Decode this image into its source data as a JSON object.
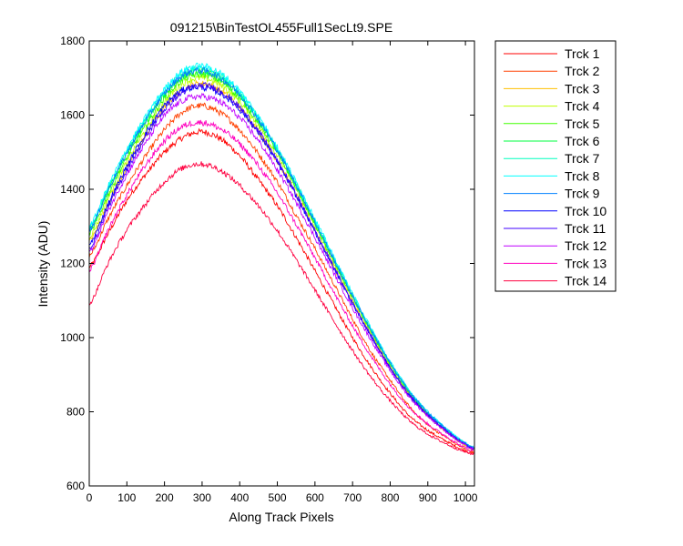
{
  "chart_data": {
    "type": "line",
    "title": "091215\\BinTestOL455Full1SecLt9.SPE",
    "xlabel": "Along Track Pixels",
    "ylabel": "Intensity (ADU)",
    "xlim": [
      0,
      1024
    ],
    "ylim": [
      600,
      1800
    ],
    "xticks": [
      0,
      100,
      200,
      300,
      400,
      500,
      600,
      700,
      800,
      900,
      1000
    ],
    "yticks": [
      600,
      800,
      1000,
      1200,
      1400,
      1600,
      1800
    ],
    "grid": false,
    "legend_position": "outside-right",
    "x": [
      0,
      50,
      100,
      150,
      200,
      250,
      300,
      350,
      400,
      450,
      500,
      550,
      600,
      650,
      700,
      750,
      800,
      850,
      900,
      950,
      1000,
      1023
    ],
    "series": [
      {
        "name": "Trck 1",
        "color": "#ff0000",
        "values": [
          1190,
          1280,
          1370,
          1440,
          1500,
          1540,
          1555,
          1535,
          1490,
          1425,
          1355,
          1270,
          1180,
          1090,
          1000,
          920,
          850,
          790,
          750,
          720,
          695,
          688
        ]
      },
      {
        "name": "Trck 2",
        "color": "#ff4000",
        "values": [
          1220,
          1320,
          1410,
          1490,
          1560,
          1610,
          1625,
          1605,
          1560,
          1495,
          1420,
          1330,
          1240,
          1145,
          1050,
          960,
          885,
          815,
          765,
          730,
          700,
          692
        ]
      },
      {
        "name": "Trck 3",
        "color": "#ffbf00",
        "values": [
          1260,
          1360,
          1460,
          1545,
          1620,
          1670,
          1685,
          1665,
          1620,
          1555,
          1475,
          1385,
          1290,
          1190,
          1095,
          1005,
          920,
          845,
          790,
          745,
          710,
          698
        ]
      },
      {
        "name": "Trck 4",
        "color": "#bfff00",
        "values": [
          1270,
          1375,
          1475,
          1560,
          1635,
          1685,
          1700,
          1680,
          1635,
          1570,
          1490,
          1400,
          1300,
          1200,
          1105,
          1012,
          925,
          850,
          793,
          748,
          712,
          700
        ]
      },
      {
        "name": "Trck 5",
        "color": "#40ff00",
        "values": [
          1280,
          1385,
          1485,
          1570,
          1645,
          1695,
          1710,
          1690,
          1645,
          1578,
          1498,
          1405,
          1305,
          1205,
          1108,
          1015,
          928,
          852,
          795,
          750,
          713,
          701
        ]
      },
      {
        "name": "Trck 6",
        "color": "#00ff40",
        "values": [
          1290,
          1395,
          1495,
          1580,
          1655,
          1705,
          1718,
          1698,
          1652,
          1585,
          1503,
          1410,
          1310,
          1210,
          1112,
          1018,
          930,
          855,
          797,
          751,
          714,
          702
        ]
      },
      {
        "name": "Trck 7",
        "color": "#00ffbf",
        "values": [
          1295,
          1402,
          1502,
          1588,
          1662,
          1712,
          1725,
          1705,
          1658,
          1590,
          1508,
          1415,
          1315,
          1213,
          1115,
          1020,
          932,
          857,
          798,
          752,
          715,
          703
        ]
      },
      {
        "name": "Trck 8",
        "color": "#00ffff",
        "values": [
          1300,
          1408,
          1508,
          1595,
          1670,
          1720,
          1732,
          1712,
          1665,
          1596,
          1513,
          1420,
          1320,
          1218,
          1118,
          1024,
          935,
          859,
          800,
          754,
          716,
          704
        ]
      },
      {
        "name": "Trck 9",
        "color": "#0080ff",
        "values": [
          1290,
          1398,
          1498,
          1585,
          1658,
          1708,
          1720,
          1700,
          1655,
          1588,
          1505,
          1412,
          1312,
          1211,
          1112,
          1019,
          931,
          856,
          798,
          752,
          715,
          703
        ]
      },
      {
        "name": "Trck 10",
        "color": "#0000ff",
        "values": [
          1250,
          1360,
          1462,
          1550,
          1625,
          1668,
          1675,
          1658,
          1615,
          1552,
          1472,
          1382,
          1285,
          1188,
          1092,
          1002,
          918,
          846,
          791,
          747,
          712,
          700
        ]
      },
      {
        "name": "Trck 11",
        "color": "#4000ff",
        "values": [
          1240,
          1350,
          1452,
          1540,
          1615,
          1662,
          1680,
          1664,
          1620,
          1556,
          1476,
          1386,
          1288,
          1190,
          1094,
          1003,
          919,
          847,
          792,
          748,
          712,
          700
        ]
      },
      {
        "name": "Trck 12",
        "color": "#bf00ff",
        "values": [
          1230,
          1340,
          1440,
          1525,
          1598,
          1640,
          1650,
          1634,
          1592,
          1530,
          1452,
          1364,
          1270,
          1174,
          1080,
          992,
          911,
          841,
          788,
          745,
          710,
          699
        ]
      },
      {
        "name": "Trck 13",
        "color": "#ff00bf",
        "values": [
          1180,
          1290,
          1385,
          1465,
          1530,
          1570,
          1580,
          1562,
          1522,
          1463,
          1390,
          1305,
          1215,
          1122,
          1032,
          948,
          874,
          812,
          767,
          733,
          703,
          694
        ]
      },
      {
        "name": "Trck 14",
        "color": "#ff0040",
        "values": [
          1090,
          1200,
          1290,
          1360,
          1420,
          1458,
          1468,
          1450,
          1410,
          1355,
          1288,
          1210,
          1128,
          1045,
          965,
          892,
          830,
          777,
          740,
          713,
          692,
          686
        ]
      }
    ]
  }
}
